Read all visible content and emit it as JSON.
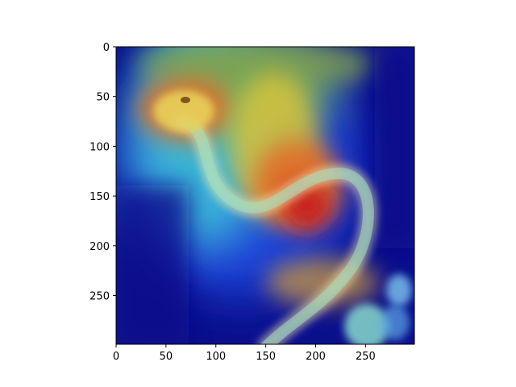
{
  "figure": {
    "image_description_name": "snake-on-heatmap",
    "colormap": "jet",
    "background": "#ffffff"
  },
  "axes": {
    "x_range": [
      0,
      299
    ],
    "y_range": [
      0,
      299
    ],
    "y_inverted": true,
    "x_ticks": [
      "0",
      "50",
      "100",
      "150",
      "200",
      "250"
    ],
    "x_tick_values": [
      0,
      50,
      100,
      150,
      200,
      250
    ],
    "y_ticks": [
      "0",
      "50",
      "100",
      "150",
      "200",
      "250"
    ],
    "y_tick_values": [
      0,
      50,
      100,
      150,
      200,
      250
    ]
  },
  "colors": {
    "deep_blue": "#0a0f8c",
    "blue": "#1a3fd6",
    "cyan": "#3fc8d8",
    "green": "#7fc45a",
    "yellow": "#d8c23a",
    "orange": "#e0702a",
    "red": "#c81a1a"
  }
}
